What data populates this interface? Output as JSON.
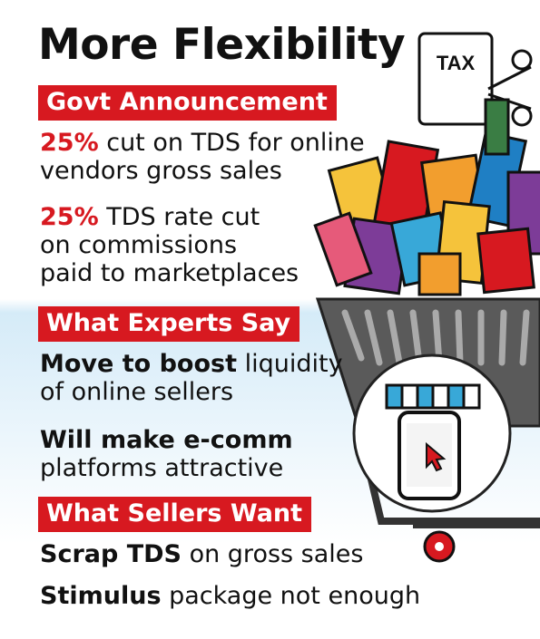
{
  "title": "More Flexibility",
  "tax_tag": "TAX",
  "sections": [
    {
      "heading": "Govt Announcement",
      "items": [
        {
          "highlight": "25%",
          "rest": " cut on TDS for online",
          "line2": "vendors gross sales"
        },
        {
          "highlight": "25%",
          "rest": " TDS rate cut",
          "line2": "on commissions",
          "line3": "paid to marketplaces"
        }
      ]
    },
    {
      "heading": "What Experts Say",
      "items": [
        {
          "highlight": "Move to boost",
          "rest": " liquidity",
          "line2": "of online sellers"
        },
        {
          "highlight": "Will make e-comm",
          "line2": "platforms attractive"
        }
      ]
    },
    {
      "heading": "What Sellers Want",
      "items": [
        {
          "highlight": "Scrap TDS",
          "rest": " on gross sales"
        },
        {
          "highlight": "Stimulus",
          "rest": " package not enough"
        }
      ]
    }
  ],
  "colors": {
    "accent": "#d71920",
    "cart": "#4a4a4a",
    "background_band": "#d5ebf8"
  },
  "icons": [
    "tax-tag-icon",
    "scissors-icon",
    "shopping-cart-icon",
    "mobile-store-icon",
    "cursor-icon"
  ]
}
